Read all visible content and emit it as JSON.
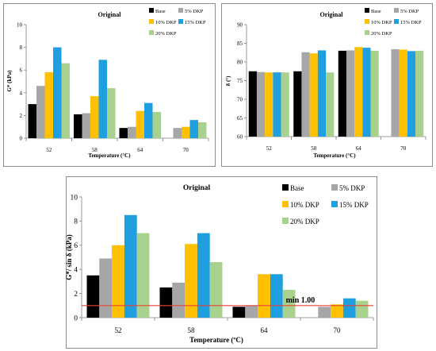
{
  "chart_data": [
    {
      "type": "bar",
      "title": "Original",
      "xlabel": "Temperature (°C)",
      "ylabel": "G* (kPa)",
      "categories": [
        "52",
        "58",
        "64",
        "70"
      ],
      "ylim": [
        0,
        10
      ],
      "yticks": [
        "0",
        "2",
        "4",
        "6",
        "8",
        "10"
      ],
      "grid": false,
      "legend_position": "top-right",
      "series": [
        {
          "name": "Base",
          "color": "#000000",
          "values": [
            3.0,
            2.1,
            0.9,
            null
          ]
        },
        {
          "name": "5% DKP",
          "color": "#a6a6a6",
          "values": [
            4.6,
            2.2,
            1.0,
            0.9
          ]
        },
        {
          "name": "10% DKP",
          "color": "#ffc000",
          "values": [
            5.8,
            3.7,
            2.4,
            1.0
          ]
        },
        {
          "name": "15% DKP",
          "color": "#1f9fe0",
          "values": [
            8.0,
            6.9,
            3.1,
            1.6
          ]
        },
        {
          "name": "20% DKP",
          "color": "#a9d18e",
          "values": [
            6.6,
            4.4,
            2.3,
            1.4
          ]
        }
      ]
    },
    {
      "type": "bar",
      "title": "Original",
      "xlabel": "Temperature (°C)",
      "ylabel": "δ (°)",
      "categories": [
        "52",
        "58",
        "64",
        "70"
      ],
      "ylim": [
        60,
        90
      ],
      "yticks": [
        "60",
        "65",
        "70",
        "75",
        "80",
        "85",
        "90"
      ],
      "grid": false,
      "legend_position": "top-right",
      "series": [
        {
          "name": "Base",
          "color": "#000000",
          "values": [
            77.5,
            77.5,
            83.0,
            null
          ]
        },
        {
          "name": "5% DKP",
          "color": "#a6a6a6",
          "values": [
            77.3,
            82.6,
            83.1,
            83.4
          ]
        },
        {
          "name": "10% DKP",
          "color": "#ffc000",
          "values": [
            77.2,
            82.3,
            84.0,
            83.3
          ]
        },
        {
          "name": "15% DKP",
          "color": "#1f9fe0",
          "values": [
            77.2,
            83.1,
            83.8,
            82.9
          ]
        },
        {
          "name": "20% DKP",
          "color": "#a9d18e",
          "values": [
            77.2,
            77.2,
            83.0,
            83.0
          ]
        }
      ]
    },
    {
      "type": "bar",
      "title": "Original",
      "xlabel": "Temperature (ºC)",
      "ylabel": "G*/ sin δ (kPa)",
      "categories": [
        "52",
        "58",
        "64",
        "70"
      ],
      "ylim": [
        0,
        10
      ],
      "yticks": [
        "0",
        "2",
        "4",
        "6",
        "8",
        "10"
      ],
      "grid": false,
      "legend_position": "top-right",
      "reference_line": {
        "value": 1.0,
        "label": "min 1.00",
        "color": "#e8423a"
      },
      "series": [
        {
          "name": "Base",
          "color": "#000000",
          "values": [
            3.5,
            2.5,
            0.9,
            null
          ]
        },
        {
          "name": "5% DKP",
          "color": "#a6a6a6",
          "values": [
            4.9,
            2.9,
            1.0,
            0.9
          ]
        },
        {
          "name": "10% DKP",
          "color": "#ffc000",
          "values": [
            6.0,
            6.1,
            3.6,
            1.1
          ]
        },
        {
          "name": "15% DKP",
          "color": "#1f9fe0",
          "values": [
            8.5,
            7.0,
            3.6,
            1.6
          ]
        },
        {
          "name": "20% DKP",
          "color": "#a9d18e",
          "values": [
            7.0,
            4.6,
            2.3,
            1.4
          ]
        }
      ]
    }
  ]
}
